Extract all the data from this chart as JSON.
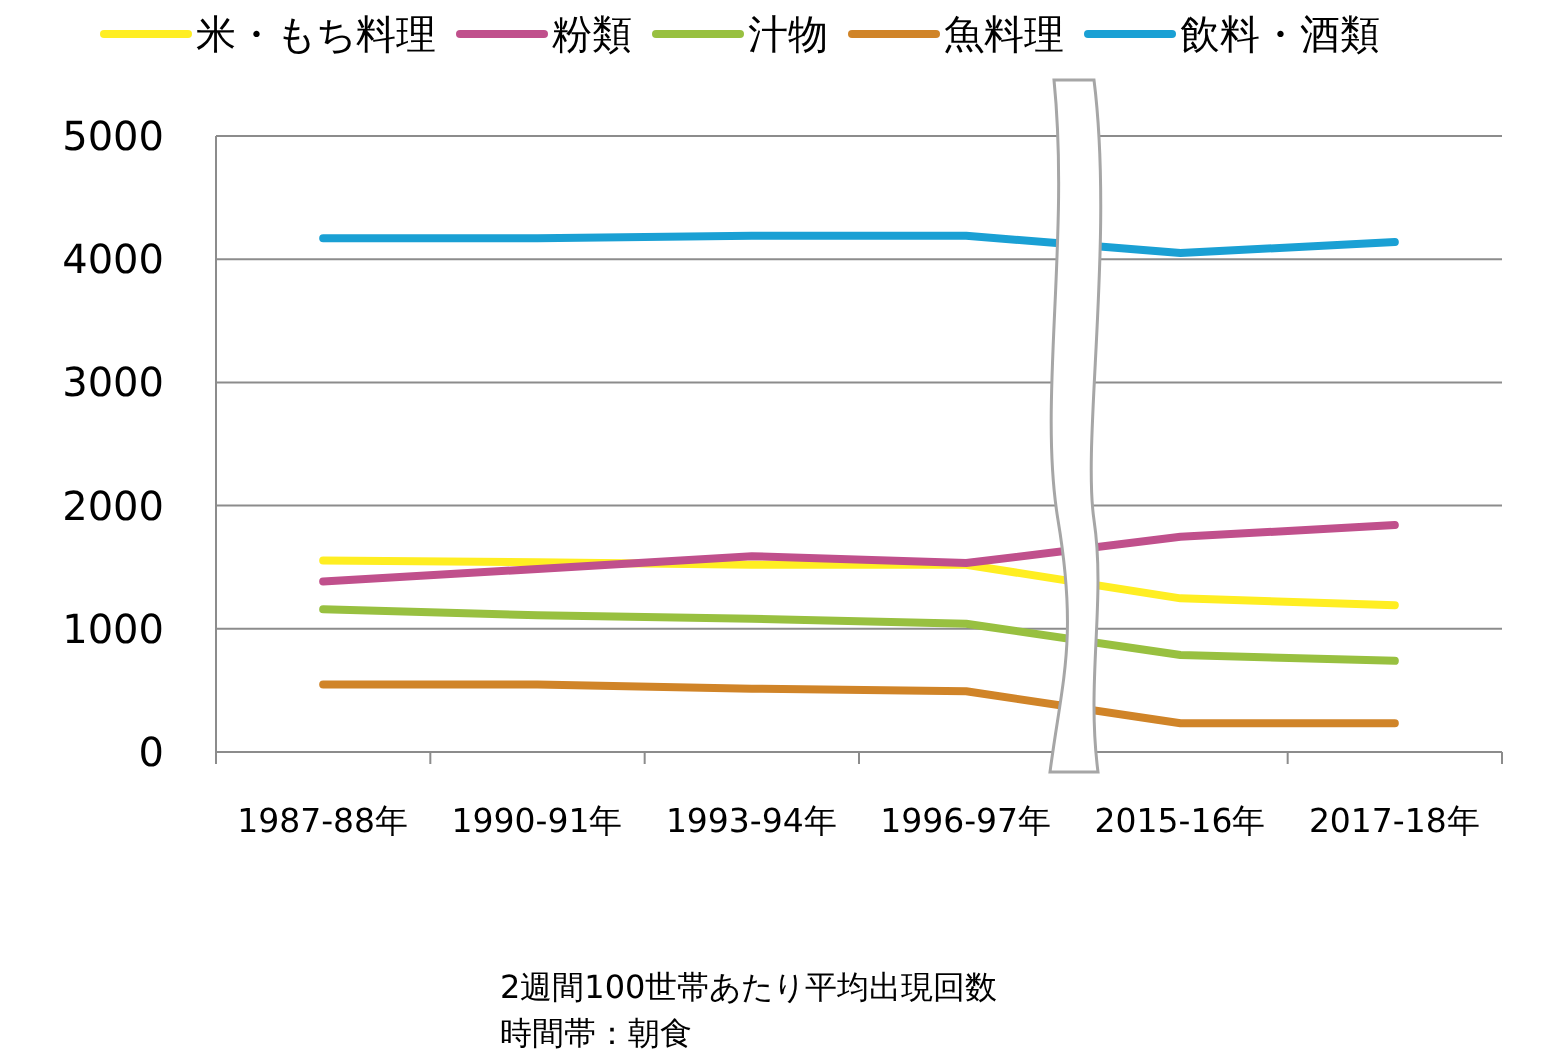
{
  "chart_data": {
    "type": "line",
    "categories": [
      "1987-88年",
      "1990-91年",
      "1993-94年",
      "1996-97年",
      "2015-16年",
      "2017-18年"
    ],
    "series": [
      {
        "name": "米・もち料理",
        "color": "#ffee22",
        "values": [
          1555,
          1540,
          1520,
          1520,
          1247,
          1192
        ]
      },
      {
        "name": "粉類",
        "color": "#c0508c",
        "values": [
          1384,
          1486,
          1589,
          1534,
          1747,
          1842
        ]
      },
      {
        "name": "汁物",
        "color": "#98c040",
        "values": [
          1158,
          1110,
          1082,
          1041,
          788,
          740
        ]
      },
      {
        "name": "魚料理",
        "color": "#d08428",
        "values": [
          548,
          548,
          514,
          493,
          233,
          233
        ]
      },
      {
        "name": "飲料・酒類",
        "color": "#1aa0d4",
        "values": [
          4170,
          4170,
          4190,
          4190,
          4050,
          4140
        ]
      }
    ],
    "ylim": [
      0,
      5000
    ],
    "yticks": [
      0,
      1000,
      2000,
      3000,
      4000,
      5000
    ],
    "grid": "y",
    "legend": "top",
    "marker": "none",
    "line_style": "solid",
    "annotations": [
      "2週間100世帯あたり平均出現回数",
      "時間帯：朝食"
    ]
  }
}
